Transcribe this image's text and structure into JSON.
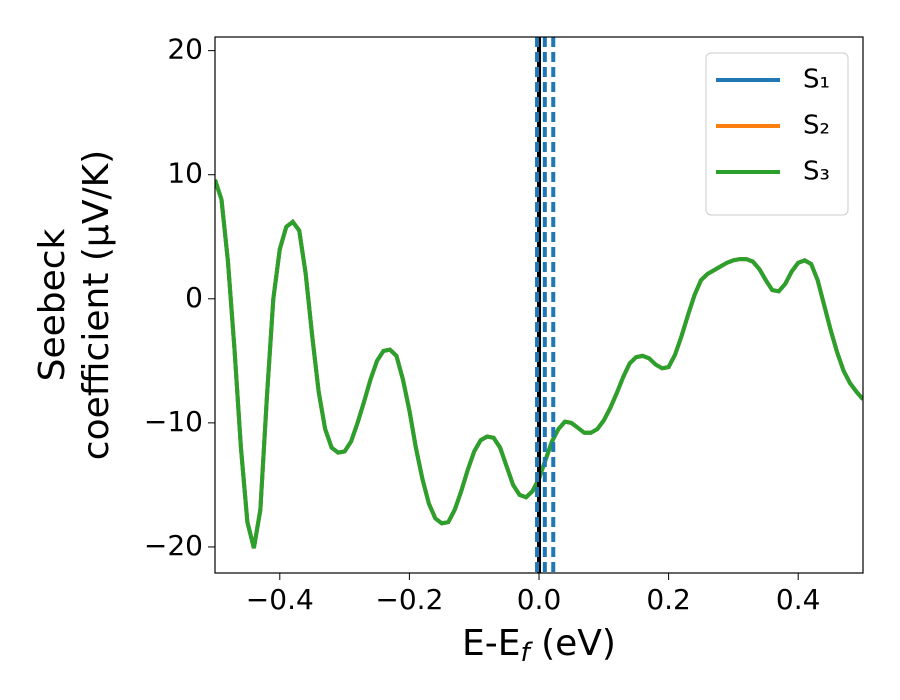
{
  "chart_data": {
    "type": "line",
    "xlabel": {
      "main": "E-E",
      "sub": "f",
      "unit": " (eV)"
    },
    "ylabel": [
      "Seebeck",
      "coefficient  (μV/K)"
    ],
    "xlim": [
      -0.5,
      0.5
    ],
    "ylim": [
      -22.1,
      21.1
    ],
    "xticks": [
      {
        "value": -0.4,
        "label": "−0.4"
      },
      {
        "value": -0.2,
        "label": "−0.2"
      },
      {
        "value": 0,
        "label": "0.0"
      },
      0.2,
      0.4
    ],
    "yticks": [
      {
        "value": -20,
        "label": "−20"
      },
      {
        "value": -10,
        "label": "−10"
      },
      0,
      10,
      20
    ],
    "legend": "upper right",
    "vlines": [
      {
        "x": 0,
        "color": "#000000",
        "style": "solid"
      },
      {
        "x": -0.003,
        "color": "#1f77b4",
        "style": "dashed"
      },
      {
        "x": 0.009,
        "color": "#1f77b4",
        "style": "dashed"
      },
      {
        "x": 0.022,
        "color": "#1f77b4",
        "style": "dashed"
      }
    ],
    "x": [
      -0.5,
      -0.49,
      -0.48,
      -0.47,
      -0.46,
      -0.45,
      -0.44,
      -0.43,
      -0.42,
      -0.41,
      -0.4,
      -0.39,
      -0.38,
      -0.37,
      -0.36,
      -0.35,
      -0.34,
      -0.33,
      -0.32,
      -0.31,
      -0.3,
      -0.29,
      -0.28,
      -0.27,
      -0.26,
      -0.25,
      -0.24,
      -0.23,
      -0.22,
      -0.21,
      -0.2,
      -0.19,
      -0.18,
      -0.17,
      -0.16,
      -0.15,
      -0.14,
      -0.13,
      -0.12,
      -0.11,
      -0.1,
      -0.09,
      -0.08,
      -0.07,
      -0.06,
      -0.05,
      -0.04,
      -0.03,
      -0.02,
      -0.01,
      0,
      0.01,
      0.02,
      0.03,
      0.04,
      0.05,
      0.06,
      0.07,
      0.08,
      0.09,
      0.1,
      0.11,
      0.12,
      0.13,
      0.14,
      0.15,
      0.16,
      0.17,
      0.18,
      0.19,
      0.2,
      0.21,
      0.22,
      0.23,
      0.24,
      0.25,
      0.26,
      0.27,
      0.28,
      0.29,
      0.3,
      0.31,
      0.32,
      0.33,
      0.34,
      0.35,
      0.36,
      0.37,
      0.38,
      0.39,
      0.4,
      0.41,
      0.42,
      0.43,
      0.44,
      0.45,
      0.46,
      0.47,
      0.48,
      0.49,
      0.5
    ],
    "series": [
      {
        "name": "S₁",
        "color": "#1f77b4",
        "values": [
          9.6,
          8,
          3,
          -4,
          -12,
          -18,
          -20.1,
          -17,
          -8,
          0,
          4,
          5.8,
          6.2,
          5.5,
          2,
          -3,
          -7.5,
          -10.5,
          -12,
          -12.4,
          -12.3,
          -11.5,
          -10,
          -8.3,
          -6.5,
          -5,
          -4.2,
          -4.1,
          -4.6,
          -6.5,
          -9,
          -12,
          -14.5,
          -16.5,
          -17.7,
          -18.1,
          -18,
          -17,
          -15.5,
          -13.8,
          -12.3,
          -11.4,
          -11.1,
          -11.2,
          -12,
          -13.5,
          -15,
          -15.8,
          -16,
          -15.5,
          -14.5,
          -13,
          -11.5,
          -10.5,
          -9.9,
          -10,
          -10.4,
          -10.8,
          -10.8,
          -10.5,
          -9.8,
          -8.8,
          -7.6,
          -6.3,
          -5.2,
          -4.7,
          -4.6,
          -4.8,
          -5.3,
          -5.6,
          -5.5,
          -4.5,
          -3,
          -1.3,
          0.3,
          1.5,
          2,
          2.3,
          2.6,
          2.9,
          3.1,
          3.2,
          3.2,
          3,
          2.4,
          1.5,
          0.7,
          0.6,
          1.2,
          2.2,
          2.9,
          3.1,
          2.8,
          1.5,
          -0.5,
          -2.5,
          -4.3,
          -5.8,
          -6.8,
          -7.5,
          -8.1
        ]
      },
      {
        "name": "S₂",
        "color": "#ff7f0e",
        "values": [
          9.6,
          8,
          3,
          -4,
          -12,
          -18,
          -20.1,
          -17,
          -8,
          0,
          4,
          5.8,
          6.2,
          5.5,
          2,
          -3,
          -7.5,
          -10.5,
          -12,
          -12.4,
          -12.3,
          -11.5,
          -10,
          -8.3,
          -6.5,
          -5,
          -4.2,
          -4.1,
          -4.6,
          -6.5,
          -9,
          -12,
          -14.5,
          -16.5,
          -17.7,
          -18.1,
          -18,
          -17,
          -15.5,
          -13.8,
          -12.3,
          -11.4,
          -11.1,
          -11.2,
          -12,
          -13.5,
          -15,
          -15.8,
          -16,
          -15.5,
          -14.5,
          -13,
          -11.5,
          -10.5,
          -9.9,
          -10,
          -10.4,
          -10.8,
          -10.8,
          -10.5,
          -9.8,
          -8.8,
          -7.6,
          -6.3,
          -5.2,
          -4.7,
          -4.6,
          -4.8,
          -5.3,
          -5.6,
          -5.5,
          -4.5,
          -3,
          -1.3,
          0.3,
          1.5,
          2,
          2.3,
          2.6,
          2.9,
          3.1,
          3.2,
          3.2,
          3,
          2.4,
          1.5,
          0.7,
          0.6,
          1.2,
          2.2,
          2.9,
          3.1,
          2.8,
          1.5,
          -0.5,
          -2.5,
          -4.3,
          -5.8,
          -6.8,
          -7.5,
          -8.1
        ]
      },
      {
        "name": "S₃",
        "color": "#2ca02c",
        "values": [
          9.6,
          8,
          3,
          -4,
          -12,
          -18,
          -20.1,
          -17,
          -8,
          0,
          4,
          5.8,
          6.2,
          5.5,
          2,
          -3,
          -7.5,
          -10.5,
          -12,
          -12.4,
          -12.3,
          -11.5,
          -10,
          -8.3,
          -6.5,
          -5,
          -4.2,
          -4.1,
          -4.6,
          -6.5,
          -9,
          -12,
          -14.5,
          -16.5,
          -17.7,
          -18.1,
          -18,
          -17,
          -15.5,
          -13.8,
          -12.3,
          -11.4,
          -11.1,
          -11.2,
          -12,
          -13.5,
          -15,
          -15.8,
          -16,
          -15.5,
          -14.5,
          -13,
          -11.5,
          -10.5,
          -9.9,
          -10,
          -10.4,
          -10.8,
          -10.8,
          -10.5,
          -9.8,
          -8.8,
          -7.6,
          -6.3,
          -5.2,
          -4.7,
          -4.6,
          -4.8,
          -5.3,
          -5.6,
          -5.5,
          -4.5,
          -3,
          -1.3,
          0.3,
          1.5,
          2,
          2.3,
          2.6,
          2.9,
          3.1,
          3.2,
          3.2,
          3,
          2.4,
          1.5,
          0.7,
          0.6,
          1.2,
          2.2,
          2.9,
          3.1,
          2.8,
          1.5,
          -0.5,
          -2.5,
          -4.3,
          -5.8,
          -6.8,
          -7.5,
          -8.1
        ]
      }
    ]
  }
}
